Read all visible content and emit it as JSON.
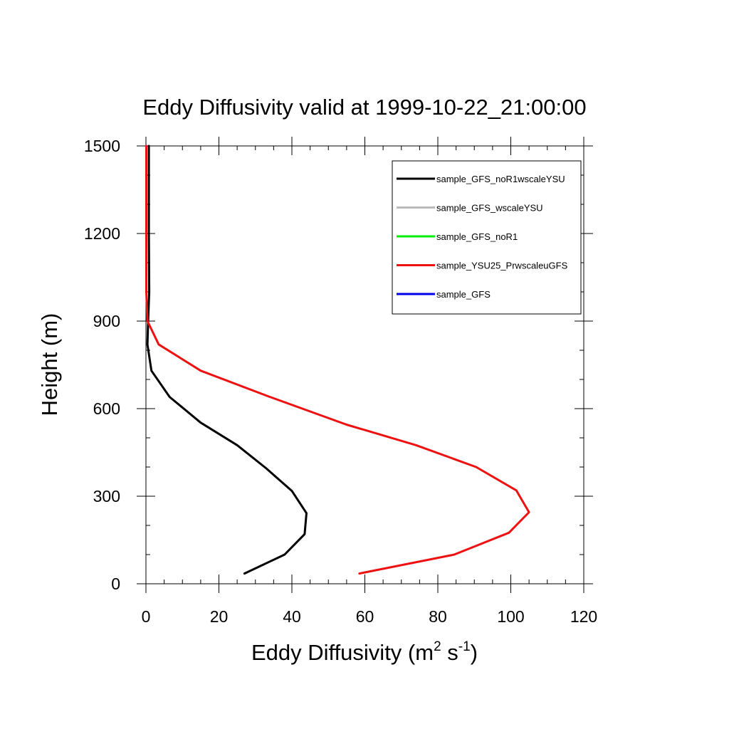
{
  "chart_data": {
    "type": "line",
    "title": "Eddy Diffusivity valid at 1999-10-22_21:00:00",
    "xlabel_main": "Eddy Diffusivity (m",
    "xlabel_sup1": "2",
    "xlabel_mid": " s",
    "xlabel_sup2": "-1",
    "xlabel_end": ")",
    "ylabel": "Height (m)",
    "xlim": [
      0,
      120
    ],
    "ylim": [
      0,
      1500
    ],
    "xticks": [
      "0",
      "20",
      "40",
      "60",
      "80",
      "100",
      "120"
    ],
    "yticks": [
      "0",
      "300",
      "600",
      "900",
      "1200",
      "1500"
    ],
    "grid": false,
    "legend_position": "top-right",
    "series": [
      {
        "name": "sample_GFS_noR1wscaleYSU",
        "color": "#000000",
        "points": [
          [
            27,
            35
          ],
          [
            38,
            100
          ],
          [
            43.5,
            170
          ],
          [
            44,
            242
          ],
          [
            40,
            318
          ],
          [
            33,
            395
          ],
          [
            25,
            475
          ],
          [
            15,
            552
          ],
          [
            6.5,
            640
          ],
          [
            1.5,
            730
          ],
          [
            0.4,
            820
          ],
          [
            0.6,
            900
          ],
          [
            0.9,
            1000
          ],
          [
            0.8,
            1200
          ],
          [
            0.8,
            1500
          ]
        ]
      },
      {
        "name": "sample_GFS_wscaleYSU",
        "color": "#bbbbbb",
        "points": []
      },
      {
        "name": "sample_GFS_noR1",
        "color": "#00ee00",
        "points": []
      },
      {
        "name": "sample_YSU25_PrwscaleuGFS",
        "color": "#ee1111",
        "points": [
          [
            58.5,
            35
          ],
          [
            84.5,
            100
          ],
          [
            99.5,
            175
          ],
          [
            105,
            245
          ],
          [
            101.5,
            320
          ],
          [
            90.5,
            400
          ],
          [
            74,
            475
          ],
          [
            55,
            545
          ],
          [
            34,
            640
          ],
          [
            15,
            730
          ],
          [
            3.5,
            820
          ],
          [
            0.4,
            900
          ],
          [
            0.1,
            1000
          ],
          [
            0.1,
            1200
          ],
          [
            0.1,
            1500
          ]
        ]
      },
      {
        "name": "sample_GFS",
        "color": "#0000ee",
        "points": []
      }
    ]
  }
}
